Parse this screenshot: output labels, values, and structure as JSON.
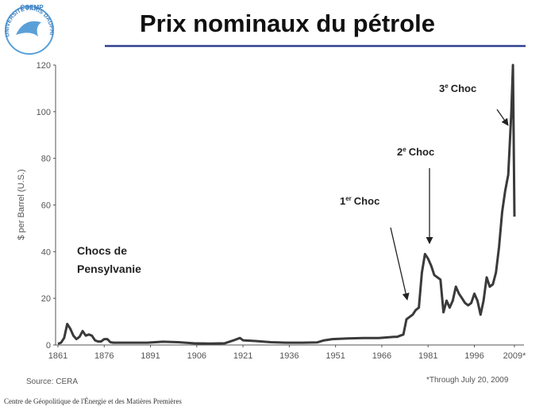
{
  "logo": {
    "acronym": "CGEMP",
    "university": "UNIVERSITE PARIS DAUPHINE"
  },
  "footer": "Centre de Géopolitique de l'Énergie et des Matières Premières",
  "chart_data": {
    "type": "line",
    "title": "Prix nominaux du pétrole",
    "y_label": "$ per Barrel (U.S.)",
    "source": "Source: CERA",
    "note": "*Through July 20, 2009",
    "color": "#3a3a3a",
    "xlim": [
      1861,
      2009.5
    ],
    "xticks": [
      1861,
      1876,
      1891,
      1906,
      1921,
      1936,
      1951,
      1966,
      1981,
      1996,
      {
        "value": 2009,
        "label": "2009*"
      }
    ],
    "ylim": [
      0,
      120
    ],
    "yticks": [
      0,
      20,
      40,
      60,
      80,
      100,
      120
    ],
    "x": [
      1861,
      1862,
      1863,
      1864,
      1865,
      1866,
      1867,
      1868,
      1869,
      1870,
      1871,
      1872,
      1873,
      1874,
      1875,
      1876,
      1877,
      1878,
      1879,
      1880,
      1885,
      1890,
      1895,
      1900,
      1905,
      1910,
      1915,
      1918,
      1920,
      1921,
      1925,
      1930,
      1935,
      1940,
      1945,
      1947,
      1950,
      1955,
      1960,
      1965,
      1970,
      1971,
      1972,
      1973,
      1974,
      1975,
      1976,
      1977,
      1978,
      1979,
      1980,
      1981,
      1982,
      1983,
      1984,
      1985,
      1986,
      1987,
      1988,
      1989,
      1990,
      1991,
      1992,
      1993,
      1994,
      1995,
      1996,
      1997,
      1998,
      1999,
      2000,
      2001,
      2002,
      2003,
      2004,
      2005,
      2006,
      2007,
      2008,
      2008.5,
      2009
    ],
    "values": [
      0.5,
      1,
      3,
      9,
      7,
      4,
      2.5,
      3.5,
      6,
      4,
      4.5,
      4,
      2,
      1.5,
      1.5,
      2.5,
      2.5,
      1.2,
      1,
      1,
      1,
      1,
      1.4,
      1.2,
      0.7,
      0.6,
      0.7,
      2,
      3,
      2,
      1.7,
      1.2,
      1,
      1,
      1.1,
      1.9,
      2.5,
      2.8,
      3,
      3,
      3.5,
      3.5,
      4,
      4.5,
      11,
      12,
      13,
      15,
      16,
      31,
      39,
      37,
      34,
      30,
      29,
      28,
      14,
      19,
      16,
      19,
      25,
      22,
      20,
      18,
      17,
      18,
      22,
      19,
      13,
      19,
      29,
      25,
      26,
      31,
      42,
      57,
      66,
      73,
      100,
      120,
      55
    ],
    "annotations": [
      {
        "number": "1",
        "suffix": "er",
        "word": "Choc"
      },
      {
        "number": "2",
        "suffix": "e",
        "word": "Choc"
      },
      {
        "number": "3",
        "suffix": "e",
        "word": "Choc"
      }
    ],
    "region_label": [
      "Chocs de",
      "Pensylvanie"
    ]
  }
}
